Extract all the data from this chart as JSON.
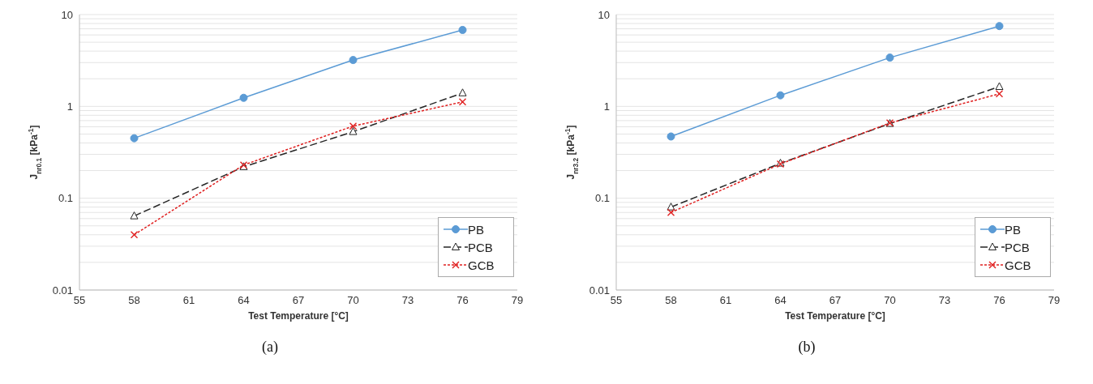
{
  "chart_data": [
    {
      "type": "line",
      "xlabel": "Test Temperature [°C]",
      "ylabel": "J$_{nr0.1}$ [kPa$^{-1}$]",
      "annotations": [
        "(a)"
      ],
      "x": [
        58,
        64,
        70,
        76
      ],
      "log": "y",
      "grid": "y",
      "legend": "bottom right",
      "xlim": [
        55,
        79
      ],
      "xticks": [
        55,
        58,
        61,
        64,
        67,
        70,
        73,
        76,
        79
      ],
      "ylim": [
        0.01,
        10
      ],
      "yticks": [
        0.01,
        {
          "value": 0.02,
          "label": null
        },
        {
          "value": 0.03,
          "label": null
        },
        {
          "value": 0.04,
          "label": null
        },
        {
          "value": 0.05,
          "label": null
        },
        {
          "value": 0.06,
          "label": null
        },
        {
          "value": 0.07,
          "label": null
        },
        {
          "value": 0.08,
          "label": null
        },
        {
          "value": 0.09,
          "label": null
        },
        0.1,
        {
          "value": 0.2,
          "label": null
        },
        {
          "value": 0.3,
          "label": null
        },
        {
          "value": 0.4,
          "label": null
        },
        {
          "value": 0.5,
          "label": null
        },
        {
          "value": 0.6,
          "label": null
        },
        {
          "value": 0.7,
          "label": null
        },
        {
          "value": 0.8,
          "label": null
        },
        {
          "value": 0.9,
          "label": null
        },
        1,
        {
          "value": 2,
          "label": null
        },
        {
          "value": 3,
          "label": null
        },
        {
          "value": 4,
          "label": null
        },
        {
          "value": 5,
          "label": null
        },
        {
          "value": 6,
          "label": null
        },
        {
          "value": 7,
          "label": null
        },
        {
          "value": 8,
          "label": null
        },
        {
          "value": 9,
          "label": null
        },
        10
      ],
      "series": [
        {
          "name": "PB",
          "color": "#5b9bd5",
          "marker": "circle",
          "line_style": "solid",
          "values": [
            0.45,
            1.24,
            3.2,
            6.8
          ]
        },
        {
          "name": "PCB",
          "color": "#262626",
          "marker": "triangle",
          "line_style": "dashed",
          "values": [
            0.064,
            0.22,
            0.53,
            1.4
          ]
        },
        {
          "name": "GCB",
          "color": "#e02020",
          "marker": "cross",
          "line_style": "dotted",
          "values": [
            0.04,
            0.23,
            0.61,
            1.12
          ]
        }
      ]
    },
    {
      "type": "line",
      "xlabel": "Test Temperature [°C]",
      "ylabel": "J$_{nr3.2}$ [kPa$^{-1}$]",
      "annotations": [
        "(b)"
      ],
      "x": [
        58,
        64,
        70,
        76
      ],
      "log": "y",
      "grid": "y",
      "legend": "bottom right",
      "xlim": [
        55,
        79
      ],
      "xticks": [
        55,
        58,
        61,
        64,
        67,
        70,
        73,
        76,
        79
      ],
      "ylim": [
        0.01,
        10
      ],
      "yticks": [
        0.01,
        {
          "value": 0.02,
          "label": null
        },
        {
          "value": 0.03,
          "label": null
        },
        {
          "value": 0.04,
          "label": null
        },
        {
          "value": 0.05,
          "label": null
        },
        {
          "value": 0.06,
          "label": null
        },
        {
          "value": 0.07,
          "label": null
        },
        {
          "value": 0.08,
          "label": null
        },
        {
          "value": 0.09,
          "label": null
        },
        0.1,
        {
          "value": 0.2,
          "label": null
        },
        {
          "value": 0.3,
          "label": null
        },
        {
          "value": 0.4,
          "label": null
        },
        {
          "value": 0.5,
          "label": null
        },
        {
          "value": 0.6,
          "label": null
        },
        {
          "value": 0.7,
          "label": null
        },
        {
          "value": 0.8,
          "label": null
        },
        {
          "value": 0.9,
          "label": null
        },
        1,
        {
          "value": 2,
          "label": null
        },
        {
          "value": 3,
          "label": null
        },
        {
          "value": 4,
          "label": null
        },
        {
          "value": 5,
          "label": null
        },
        {
          "value": 6,
          "label": null
        },
        {
          "value": 7,
          "label": null
        },
        {
          "value": 8,
          "label": null
        },
        {
          "value": 9,
          "label": null
        },
        10
      ],
      "series": [
        {
          "name": "PB",
          "color": "#5b9bd5",
          "marker": "circle",
          "line_style": "solid",
          "values": [
            0.47,
            1.32,
            3.4,
            7.5
          ]
        },
        {
          "name": "PCB",
          "color": "#262626",
          "marker": "triangle",
          "line_style": "dashed",
          "values": [
            0.08,
            0.24,
            0.65,
            1.64
          ]
        },
        {
          "name": "GCB",
          "color": "#e02020",
          "marker": "cross",
          "line_style": "dotted",
          "values": [
            0.07,
            0.236,
            0.66,
            1.37
          ]
        }
      ]
    }
  ]
}
